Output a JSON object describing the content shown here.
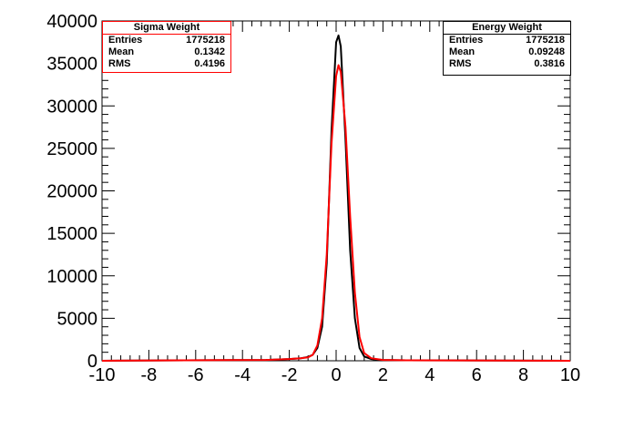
{
  "chart_data": {
    "type": "line",
    "title": "",
    "xlabel": "",
    "ylabel": "",
    "xlim": [
      -10,
      10
    ],
    "ylim": [
      0,
      40000
    ],
    "x_ticks": [
      "-10",
      "-8",
      "-6",
      "-4",
      "-2",
      "0",
      "2",
      "4",
      "6",
      "8",
      "10"
    ],
    "y_ticks": [
      "0",
      "5000",
      "10000",
      "15000",
      "20000",
      "25000",
      "30000",
      "35000",
      "40000"
    ],
    "grid": false,
    "series": [
      {
        "name": "Energy Weight",
        "color": "#000000",
        "x": [
          -10,
          -3,
          -2,
          -1.5,
          -1.2,
          -1.0,
          -0.8,
          -0.6,
          -0.4,
          -0.2,
          0.0,
          0.1,
          0.2,
          0.4,
          0.6,
          0.8,
          1.0,
          1.2,
          1.5,
          2.0,
          3.0,
          10
        ],
        "y": [
          0,
          100,
          200,
          300,
          450,
          700,
          1500,
          4000,
          11500,
          27000,
          37500,
          38300,
          37000,
          26000,
          13000,
          5000,
          1500,
          500,
          200,
          100,
          50,
          0
        ]
      },
      {
        "name": "Sigma Weight",
        "color": "#ff0000",
        "x": [
          -10,
          -3,
          -2,
          -1.5,
          -1.2,
          -1.0,
          -0.8,
          -0.6,
          -0.4,
          -0.2,
          0.0,
          0.1,
          0.2,
          0.4,
          0.6,
          0.8,
          1.0,
          1.2,
          1.5,
          2.0,
          3.0,
          10
        ],
        "y": [
          0,
          100,
          200,
          300,
          400,
          700,
          1800,
          5000,
          12500,
          25500,
          33500,
          34800,
          34000,
          27500,
          17000,
          8000,
          2800,
          900,
          300,
          100,
          50,
          0
        ]
      }
    ]
  },
  "stats": {
    "sigma": {
      "title": "Sigma Weight",
      "entries_label": "Entries",
      "entries_value": "1775218",
      "mean_label": "Mean",
      "mean_value": "0.1342",
      "rms_label": "RMS",
      "rms_value": "0.4196",
      "color": "#ff0000"
    },
    "energy": {
      "title": "Energy Weight",
      "entries_label": "Entries",
      "entries_value": "1775218",
      "mean_label": "Mean",
      "mean_value": "0.09248",
      "rms_label": "RMS",
      "rms_value": "0.3816",
      "color": "#000000"
    }
  }
}
